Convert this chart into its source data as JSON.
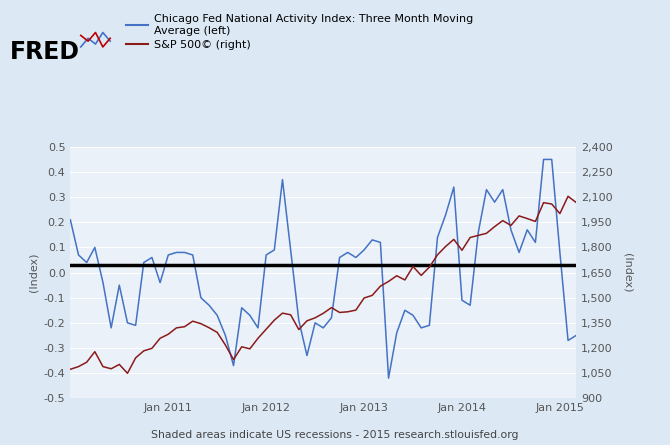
{
  "legend_blue": "Chicago Fed National Activity Index: Three Month Moving\nAverage (left)",
  "legend_red": "S&P 500© (right)",
  "footnote": "Shaded areas indicate US recessions - 2015 research.stlouisfed.org",
  "bg_color": "#dce9f5",
  "plot_bg_color": "#eaf1f8",
  "left_ylim": [
    -0.5,
    0.5
  ],
  "right_ylim": [
    900,
    2400
  ],
  "left_yticks": [
    -0.5,
    -0.4,
    -0.3,
    -0.2,
    -0.1,
    0.0,
    0.1,
    0.2,
    0.3,
    0.4,
    0.5
  ],
  "right_yticks": [
    900,
    1050,
    1200,
    1350,
    1500,
    1650,
    1800,
    1950,
    2100,
    2250,
    2400
  ],
  "hline_y": 0.03,
  "blue_color": "#4472c4",
  "red_color": "#8b1a1a",
  "hline_color": "#000000",
  "cfnai_values": [
    0.21,
    0.07,
    0.04,
    0.1,
    -0.04,
    -0.22,
    -0.05,
    -0.2,
    -0.21,
    0.04,
    0.06,
    -0.04,
    0.07,
    0.08,
    0.08,
    0.07,
    -0.1,
    -0.13,
    -0.17,
    -0.25,
    -0.37,
    -0.14,
    -0.17,
    -0.22,
    0.07,
    0.09,
    0.37,
    0.09,
    -0.19,
    -0.33,
    -0.2,
    -0.22,
    -0.18,
    0.06,
    0.08,
    0.06,
    0.09,
    0.13,
    0.12,
    -0.42,
    -0.24,
    -0.15,
    -0.17,
    -0.22,
    -0.21,
    0.14,
    0.23,
    0.34,
    -0.11,
    -0.13,
    0.16,
    0.33,
    0.28,
    0.33,
    0.17,
    0.08,
    0.17,
    0.12,
    0.45,
    0.45,
    0.08,
    -0.27,
    -0.25
  ],
  "sp500_values": [
    1073,
    1089,
    1115,
    1178,
    1089,
    1076,
    1102,
    1049,
    1141,
    1183,
    1198,
    1258,
    1282,
    1320,
    1327,
    1360,
    1345,
    1321,
    1293,
    1218,
    1131,
    1207,
    1195,
    1258,
    1312,
    1366,
    1408,
    1398,
    1310,
    1362,
    1380,
    1407,
    1441,
    1412,
    1416,
    1426,
    1498,
    1514,
    1569,
    1597,
    1631,
    1606,
    1686,
    1633,
    1682,
    1756,
    1806,
    1848,
    1783,
    1859,
    1872,
    1884,
    1924,
    1960,
    1931,
    1988,
    1972,
    1955,
    2067,
    2059,
    2002,
    2105,
    2068
  ],
  "xtick_positions": [
    12,
    24,
    36,
    48,
    60
  ],
  "xtick_labels": [
    "Jan 2011",
    "Jan 2012",
    "Jan 2013",
    "Jan 2014",
    "Jan 2015"
  ]
}
